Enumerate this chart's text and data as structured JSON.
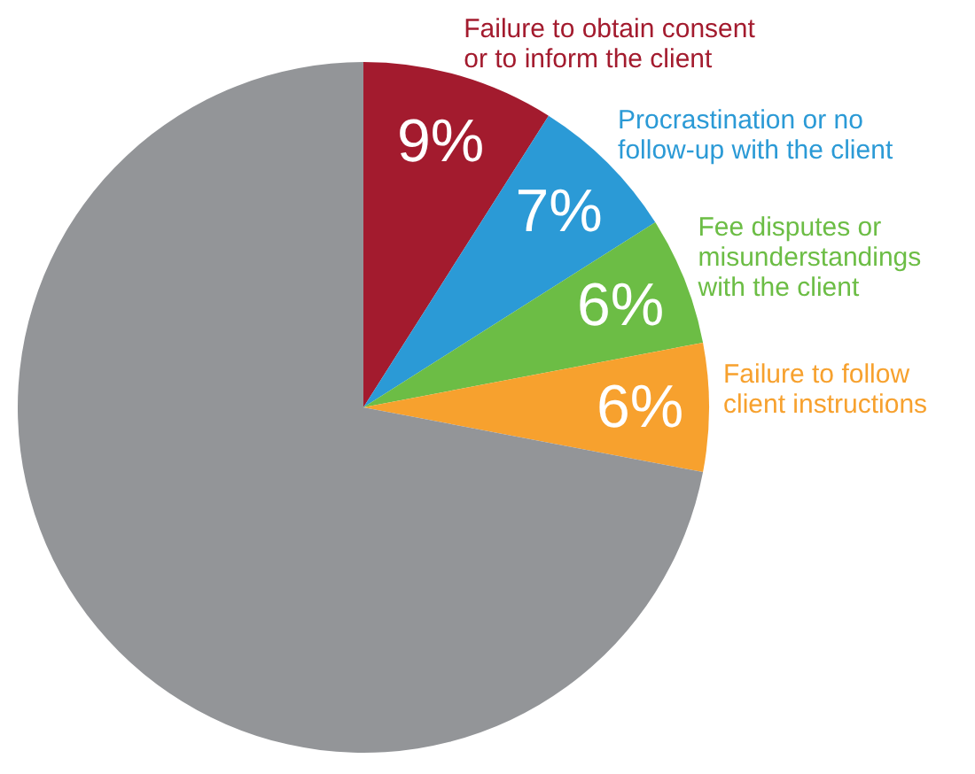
{
  "chart_data": {
    "type": "pie",
    "categories": [
      "Failure to obtain consent or to inform the client",
      "Procrastination or no follow-up with the client",
      "Fee disputes or misunderstandings with the client",
      "Failure to follow client instructions",
      null
    ],
    "values": [
      9,
      7,
      6,
      6,
      72
    ],
    "colors": [
      "#a31b2e",
      "#2b9ad6",
      "#6cbd45",
      "#f7a12e",
      "#939598"
    ],
    "value_labels": [
      "9%",
      "7%",
      "6%",
      "6%",
      null
    ],
    "legend": false
  }
}
